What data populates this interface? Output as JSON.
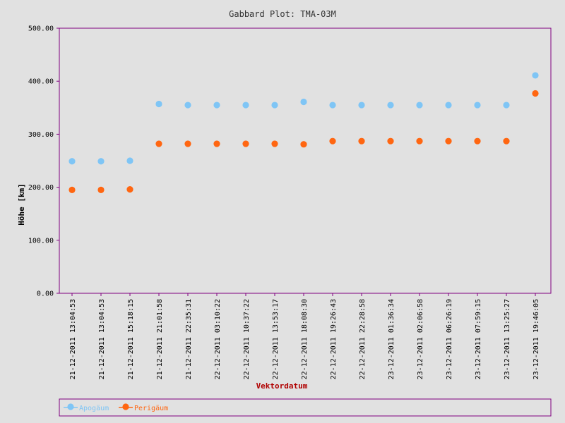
{
  "chart_data": {
    "type": "scatter",
    "title": "Gabbard Plot: TMA-03M",
    "xlabel": "Vektordatum",
    "ylabel": "Höhe [km]",
    "ylim": [
      0,
      500
    ],
    "yticks": [
      "0.00",
      "100.00",
      "200.00",
      "300.00",
      "400.00",
      "500.00"
    ],
    "ytick_values": [
      0,
      100,
      200,
      300,
      400,
      500
    ],
    "categories": [
      "21-12-2011 13:04:53",
      "21-12-2011 13:04:53",
      "21-12-2011 15:18:15",
      "21-12-2011 21:01:58",
      "21-12-2011 22:35:31",
      "22-12-2011 03:10:22",
      "22-12-2011 10:37:22",
      "22-12-2011 13:53:17",
      "22-12-2011 18:08:30",
      "22-12-2011 19:26:43",
      "22-12-2011 22:28:58",
      "23-12-2011 01:36:34",
      "23-12-2011 02:06:58",
      "23-12-2011 06:26:19",
      "23-12-2011 07:59:15",
      "23-12-2011 13:25:27",
      "23-12-2011 19:46:05"
    ],
    "series": [
      {
        "name": "Apogäum",
        "color": "#7fc5f5",
        "values": [
          249,
          249,
          250,
          357,
          355,
          355,
          355,
          355,
          361,
          355,
          355,
          355,
          355,
          355,
          355,
          355,
          411
        ]
      },
      {
        "name": "Perigäum",
        "color": "#ff6611",
        "values": [
          195,
          195,
          196,
          282,
          282,
          282,
          282,
          282,
          281,
          287,
          287,
          287,
          287,
          287,
          287,
          287,
          377
        ]
      }
    ],
    "grid": false,
    "legend": "bottom"
  }
}
